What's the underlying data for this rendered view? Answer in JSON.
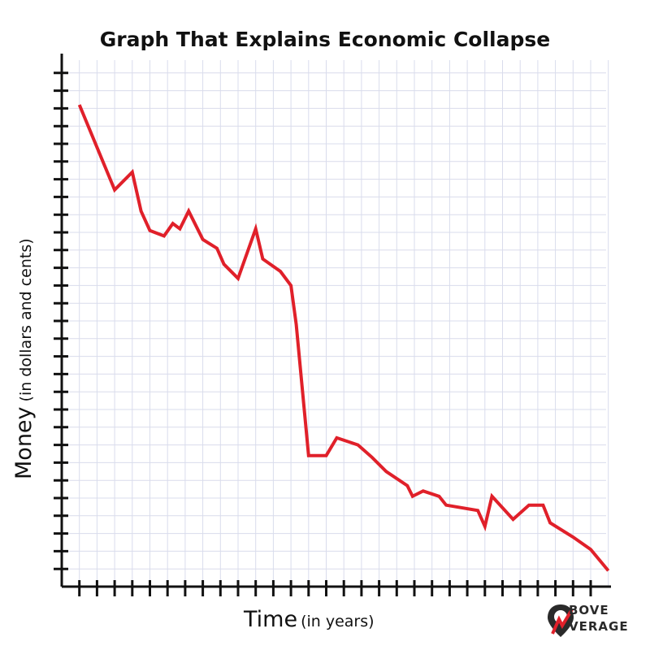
{
  "chart_data": {
    "type": "line",
    "title": "Graph That Explains Economic Collapse",
    "xlabel": "Time",
    "xlabel_note": "(in years)",
    "ylabel": "Money",
    "ylabel_note": "(in dollars and cents)",
    "xlim": [
      0,
      30
    ],
    "ylim": [
      0,
      28
    ],
    "grid": true,
    "show_tick_labels": false,
    "series": [
      {
        "color": "#e0202a",
        "points": [
          [
            1,
            27.2
          ],
          [
            3,
            22.4
          ],
          [
            4,
            23.4
          ],
          [
            4.5,
            21.2
          ],
          [
            5,
            20.1
          ],
          [
            5.8,
            19.8
          ],
          [
            6.3,
            20.5
          ],
          [
            6.7,
            20.2
          ],
          [
            7.2,
            21.2
          ],
          [
            8,
            19.6
          ],
          [
            8.8,
            19.1
          ],
          [
            9.2,
            18.2
          ],
          [
            10,
            17.4
          ],
          [
            11,
            20.2
          ],
          [
            11.4,
            18.5
          ],
          [
            12.4,
            17.8
          ],
          [
            13,
            17.0
          ],
          [
            13.3,
            14.8
          ],
          [
            14,
            7.4
          ],
          [
            15,
            7.4
          ],
          [
            15.6,
            8.4
          ],
          [
            16.8,
            8.0
          ],
          [
            17.6,
            7.3
          ],
          [
            18.4,
            6.5
          ],
          [
            19.6,
            5.7
          ],
          [
            19.9,
            5.1
          ],
          [
            20.5,
            5.4
          ],
          [
            21.4,
            5.1
          ],
          [
            21.8,
            4.6
          ],
          [
            23.6,
            4.3
          ],
          [
            24,
            3.4
          ],
          [
            24.4,
            5.1
          ],
          [
            25.6,
            3.8
          ],
          [
            26.5,
            4.6
          ],
          [
            27.3,
            4.6
          ],
          [
            27.7,
            3.6
          ],
          [
            29,
            2.8
          ],
          [
            30,
            2.1
          ],
          [
            31,
            0.9
          ]
        ]
      }
    ]
  },
  "logo": {
    "line1": "BOVE",
    "line2": "VERAGE",
    "accent_color": "#e0202a"
  }
}
